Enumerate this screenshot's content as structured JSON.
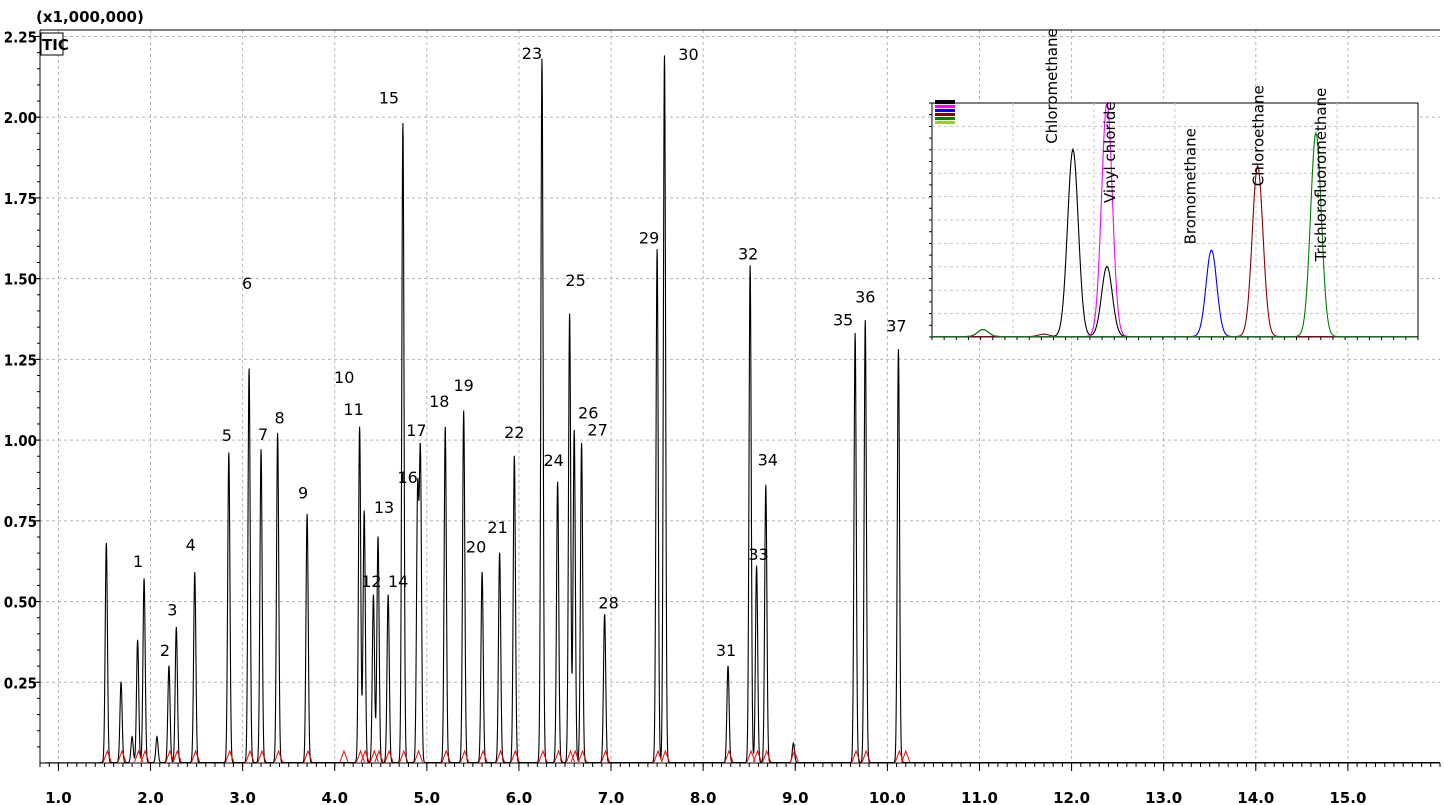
{
  "chart_data": {
    "type": "line",
    "title": "",
    "xlabel": "",
    "ylabel": "",
    "scale_label": "(x1,000,000)",
    "trace_label": "TIC",
    "xlim": [
      0.8,
      16.0
    ],
    "ylim": [
      0.0,
      2.27
    ],
    "grid": true,
    "x_ticks": [
      {
        "value": 1.0,
        "label": "1.0"
      },
      {
        "value": 2.0,
        "label": "2.0"
      },
      {
        "value": 3.0,
        "label": "3.0"
      },
      {
        "value": 4.0,
        "label": "4.0"
      },
      {
        "value": 5.0,
        "label": "5.0"
      },
      {
        "value": 6.0,
        "label": "6.0"
      },
      {
        "value": 7.0,
        "label": "7.0"
      },
      {
        "value": 8.0,
        "label": "8.0"
      },
      {
        "value": 9.0,
        "label": "9.0"
      },
      {
        "value": 10.0,
        "label": "10.0"
      },
      {
        "value": 11.0,
        "label": "11.0"
      },
      {
        "value": 12.0,
        "label": "12.0"
      },
      {
        "value": 13.0,
        "label": "13.0"
      },
      {
        "value": 14.0,
        "label": "14.0"
      },
      {
        "value": 15.0,
        "label": "15.0"
      }
    ],
    "y_ticks": [
      {
        "value": 0.25,
        "label": "0.25"
      },
      {
        "value": 0.5,
        "label": "0.50"
      },
      {
        "value": 0.75,
        "label": "0.75"
      },
      {
        "value": 1.0,
        "label": "1.00"
      },
      {
        "value": 1.25,
        "label": "1.25"
      },
      {
        "value": 1.5,
        "label": "1.50"
      },
      {
        "value": 1.75,
        "label": "1.75"
      },
      {
        "value": 2.0,
        "label": "2.00"
      },
      {
        "value": 2.25,
        "label": "2.25"
      }
    ],
    "series": [
      {
        "color": "#000000",
        "peaks": [
          {
            "x": 1.52,
            "y": 0.68
          },
          {
            "x": 1.68,
            "y": 0.25
          },
          {
            "x": 1.8,
            "y": 0.08
          },
          {
            "x": 1.86,
            "y": 0.38
          },
          {
            "x": 1.93,
            "y": 0.57,
            "label": "1"
          },
          {
            "x": 2.07,
            "y": 0.08
          },
          {
            "x": 2.2,
            "y": 0.3,
            "label": "2"
          },
          {
            "x": 2.28,
            "y": 0.42,
            "label": "3"
          },
          {
            "x": 2.48,
            "y": 0.59,
            "label": "4"
          },
          {
            "x": 2.85,
            "y": 0.96,
            "label": "5"
          },
          {
            "x": 3.07,
            "y": 1.22,
            "label": "6"
          },
          {
            "x": 3.2,
            "y": 0.97,
            "label": "7"
          },
          {
            "x": 3.38,
            "y": 1.02,
            "label": "8"
          },
          {
            "x": 3.7,
            "y": 0.77,
            "label": "9"
          },
          {
            "x": 4.27,
            "y": 1.04,
            "label": "11"
          },
          {
            "x": 4.32,
            "y": 0.78,
            "label": "10"
          },
          {
            "x": 4.42,
            "y": 0.52,
            "label": "12"
          },
          {
            "x": 4.47,
            "y": 0.7,
            "label": "13"
          },
          {
            "x": 4.58,
            "y": 0.52,
            "label": "14"
          },
          {
            "x": 4.74,
            "y": 1.98,
            "label": "15"
          },
          {
            "x": 4.9,
            "y": 0.83,
            "label": "16"
          },
          {
            "x": 4.93,
            "y": 0.95,
            "label": "17"
          },
          {
            "x": 5.2,
            "y": 1.04,
            "label": "18"
          },
          {
            "x": 5.4,
            "y": 1.09,
            "label": "19"
          },
          {
            "x": 5.6,
            "y": 0.59,
            "label": "20"
          },
          {
            "x": 5.79,
            "y": 0.65,
            "label": "21"
          },
          {
            "x": 5.95,
            "y": 0.95,
            "label": "22"
          },
          {
            "x": 6.25,
            "y": 2.18,
            "label": "23"
          },
          {
            "x": 6.42,
            "y": 0.87,
            "label": "24"
          },
          {
            "x": 6.55,
            "y": 1.39,
            "label": "25"
          },
          {
            "x": 6.6,
            "y": 1.03,
            "label": "26"
          },
          {
            "x": 6.68,
            "y": 0.99,
            "label": "27"
          },
          {
            "x": 6.93,
            "y": 0.46,
            "label": "28"
          },
          {
            "x": 7.5,
            "y": 1.59,
            "label": "29"
          },
          {
            "x": 7.58,
            "y": 2.19,
            "label": "30"
          },
          {
            "x": 8.27,
            "y": 0.3,
            "label": "31"
          },
          {
            "x": 8.51,
            "y": 1.54,
            "label": "32"
          },
          {
            "x": 8.58,
            "y": 0.61,
            "label": "33"
          },
          {
            "x": 8.68,
            "y": 0.86,
            "label": "34"
          },
          {
            "x": 8.98,
            "y": 0.06
          },
          {
            "x": 9.65,
            "y": 1.33,
            "label": "35"
          },
          {
            "x": 9.76,
            "y": 1.37,
            "label": "36"
          },
          {
            "x": 10.12,
            "y": 1.28,
            "label": "37"
          }
        ]
      },
      {
        "color": "#ff0000",
        "integration_marks": [
          1.53,
          1.69,
          1.87,
          1.94,
          2.21,
          2.29,
          2.49,
          2.86,
          3.08,
          3.21,
          3.39,
          3.71,
          4.1,
          4.28,
          4.33,
          4.43,
          4.48,
          4.59,
          4.75,
          4.91,
          5.21,
          5.41,
          5.61,
          5.8,
          5.96,
          6.26,
          6.43,
          6.56,
          6.61,
          6.69,
          6.94,
          7.51,
          7.59,
          8.28,
          8.52,
          8.59,
          8.69,
          8.99,
          9.66,
          9.77,
          10.13,
          10.2
        ]
      }
    ],
    "inset": {
      "title": "",
      "series": [
        {
          "color": "#000000",
          "peaks": [
            {
              "x": 0.21,
              "y": 0.03
            },
            {
              "x": 0.58,
              "y": 0.8,
              "label": "Chloromethane"
            },
            {
              "x": 0.72,
              "y": 0.3
            }
          ]
        },
        {
          "color": "#ff00ff",
          "peaks": [
            {
              "x": 0.72,
              "y": 1.0,
              "label": "Vinyl chloride"
            }
          ]
        },
        {
          "color": "#0000ff",
          "peaks": [
            {
              "x": 1.15,
              "y": 0.37,
              "label": "Bromomethane"
            }
          ]
        },
        {
          "color": "#8b0000",
          "peaks": [
            {
              "x": 0.46,
              "y": 0.01
            },
            {
              "x": 1.34,
              "y": 0.73,
              "label": "Chloroethane"
            }
          ]
        },
        {
          "color": "#008000",
          "peaks": [
            {
              "x": 0.21,
              "y": 0.03
            },
            {
              "x": 1.58,
              "y": 0.87,
              "label": "Trichlorofluoromethane"
            }
          ]
        }
      ]
    }
  }
}
